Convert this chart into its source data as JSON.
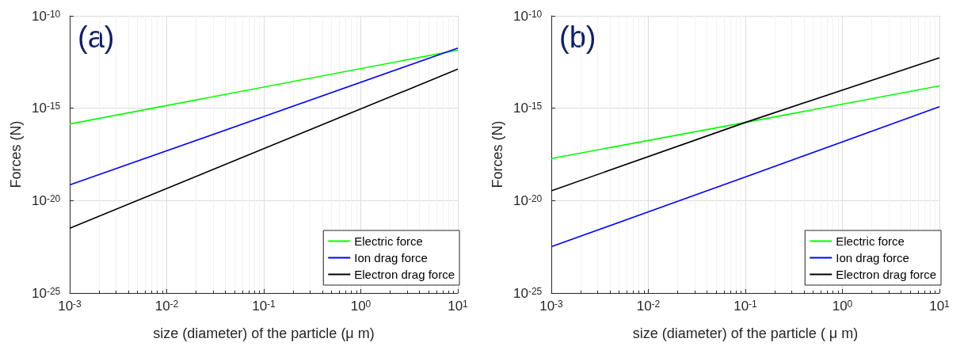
{
  "chart_data": [
    {
      "type": "line",
      "annotations": [
        "(a)"
      ],
      "xlabel": "size (diameter) of the particle (μ m)",
      "ylabel": "Forces (N)",
      "xlim": [
        0.001,
        10
      ],
      "ylim": [
        1e-25,
        1e-10
      ],
      "log": "xy",
      "grid": true,
      "legend": "bottom right",
      "xticks": [
        {
          "value": 0.001,
          "label": "10$^{-3}$"
        },
        {
          "value": 0.01,
          "label": "10$^{-2}$"
        },
        {
          "value": 0.1,
          "label": "10$^{-1}$"
        },
        {
          "value": 1,
          "label": "10$^{0}$"
        },
        {
          "value": 10,
          "label": "10$^{1}$"
        }
      ],
      "yticks": [
        {
          "value": 1e-25,
          "label": "10$^{-25}$"
        },
        {
          "value": 1e-20,
          "label": "10$^{-20}$"
        },
        {
          "value": 1e-15,
          "label": "10$^{-15}$"
        },
        {
          "value": 1e-10,
          "label": "10$^{-10}$"
        }
      ],
      "x": [
        0.001,
        10
      ],
      "series": [
        {
          "name": "Electric force",
          "color": "#00ff00",
          "values": [
            1.4e-16,
            1.4e-12
          ]
        },
        {
          "name": "Ion drag force",
          "color": "#0000ff",
          "values": [
            7e-20,
            1.8e-12
          ]
        },
        {
          "name": "Electron drag force",
          "color": "#000000",
          "values": [
            3.2e-22,
            1.3e-13
          ]
        }
      ]
    },
    {
      "type": "line",
      "annotations": [
        "(b)"
      ],
      "xlabel": "size (diameter) of the particle ( μ m)",
      "ylabel": "Forces (N)",
      "xlim": [
        0.001,
        10
      ],
      "ylim": [
        1e-25,
        1e-10
      ],
      "log": "xy",
      "grid": true,
      "legend": "bottom right",
      "xticks": [
        {
          "value": 0.001,
          "label": "10$^{-3}$"
        },
        {
          "value": 0.01,
          "label": "10$^{-2}$"
        },
        {
          "value": 0.1,
          "label": "10$^{-1}$"
        },
        {
          "value": 1,
          "label": "10$^{0}$"
        },
        {
          "value": 10,
          "label": "10$^{1}$"
        }
      ],
      "yticks": [
        {
          "value": 1e-25,
          "label": "10$^{-25}$"
        },
        {
          "value": 1e-20,
          "label": "10$^{-20}$"
        },
        {
          "value": 1e-15,
          "label": "10$^{-15}$"
        },
        {
          "value": 1e-10,
          "label": "10$^{-10}$"
        }
      ],
      "x": [
        0.001,
        0.1,
        10
      ],
      "series": [
        {
          "name": "Electric force",
          "color": "#00ff00",
          "values": [
            1.9e-18,
            1.7e-16,
            1.6e-14
          ]
        },
        {
          "name": "Ion drag force",
          "color": "#0000ff",
          "values": [
            3.2e-23,
            1.9e-19,
            1.2e-15
          ]
        },
        {
          "name": "Electron drag force",
          "color": "#000000",
          "values": [
            3.4e-20,
            1.7e-16,
            5.4e-13
          ]
        }
      ]
    }
  ]
}
